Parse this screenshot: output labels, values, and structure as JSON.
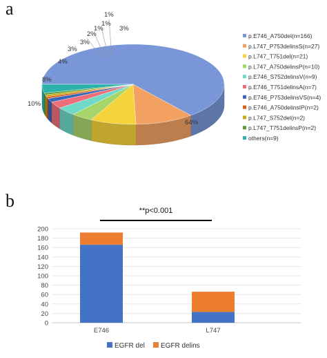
{
  "panels": {
    "a": "a",
    "b": "b"
  },
  "chart_data": [
    {
      "type": "pie",
      "title": "",
      "style": "3d",
      "legend": "right",
      "slices": [
        {
          "label": "p.E746_A750del(n=166)",
          "value": 166,
          "pct": "64%",
          "color": "#7896d8"
        },
        {
          "label": "p.L747_P753delinsS(n=27)",
          "value": 27,
          "pct": "10%",
          "color": "#f2a163"
        },
        {
          "label": "p.L747_T751del(n=21)",
          "value": 21,
          "pct": "8%",
          "color": "#f5d43b"
        },
        {
          "label": "p.L747_A750delinsP(n=10)",
          "value": 10,
          "pct": "4%",
          "color": "#a8d46c"
        },
        {
          "label": "p.E746_S752delinsV(n=9)",
          "value": 9,
          "pct": "3%",
          "color": "#6fd9c8"
        },
        {
          "label": "p.E746_T751delinsA(n=7)",
          "value": 7,
          "pct": "3%",
          "color": "#ee6f7a"
        },
        {
          "label": "p.E746_P753delinsVS(n=4)",
          "value": 4,
          "pct": "2%",
          "color": "#3a66b8"
        },
        {
          "label": "p.E746_A750delinsIP(n=2)",
          "value": 2,
          "pct": "1%",
          "color": "#d9601c"
        },
        {
          "label": "p.L747_S752del(n=2)",
          "value": 2,
          "pct": "1%",
          "color": "#c9a617"
        },
        {
          "label": "p.L747_T751delinsP(n=2)",
          "value": 2,
          "pct": "1%",
          "color": "#5c9a35"
        },
        {
          "label": "others(n=9)",
          "value": 9,
          "pct": "3%",
          "color": "#2ab3aa"
        }
      ]
    },
    {
      "type": "bar",
      "stacked": true,
      "categories": [
        "E746",
        "L747"
      ],
      "series": [
        {
          "name": "EGFR del",
          "values": [
            166,
            23
          ],
          "color": "#4472c4"
        },
        {
          "name": "EGFR delins",
          "values": [
            26,
            43
          ],
          "color": "#ed7d31"
        }
      ],
      "ylim": [
        0,
        200
      ],
      "yticks": [
        0,
        20,
        40,
        60,
        80,
        100,
        120,
        140,
        160,
        180,
        200
      ],
      "annotation": "**p<0.001",
      "legend": "bottom"
    }
  ]
}
